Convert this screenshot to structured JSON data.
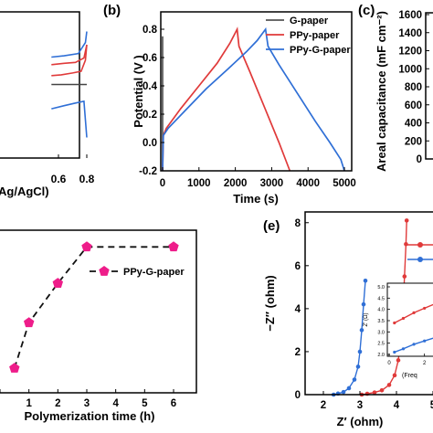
{
  "chart_data": [
    {
      "id": "a",
      "type": "line",
      "panel_label": "",
      "xlabel_fragment": "Ag/AgCl)",
      "x_ticks": [
        "0.6",
        "0.8"
      ],
      "xlim": [
        0.6,
        0.8
      ],
      "series": [
        {
          "color": "#444444",
          "x": [
            0.55,
            0.8
          ],
          "y": [
            0,
            0
          ]
        },
        {
          "color": "#e03a3a",
          "x": [
            0.55,
            0.62,
            0.7,
            0.76,
            0.79,
            0.8
          ],
          "y": [
            0.2,
            0.22,
            0.26,
            0.3,
            0.55,
            0.9
          ]
        },
        {
          "color": "#e03a3a",
          "x": [
            0.8,
            0.78,
            0.72,
            0.64,
            0.55
          ],
          "y": [
            0.9,
            0.6,
            0.5,
            0.48,
            0.45
          ]
        },
        {
          "color": "#2f6fd6",
          "x": [
            0.55,
            0.64,
            0.72,
            0.78,
            0.8
          ],
          "y": [
            -0.55,
            -0.48,
            -0.42,
            -0.38,
            -1.2
          ]
        },
        {
          "color": "#2f6fd6",
          "x": [
            0.8,
            0.79,
            0.74,
            0.64,
            0.55
          ],
          "y": [
            1.2,
            0.95,
            0.7,
            0.65,
            0.62
          ]
        }
      ]
    },
    {
      "id": "b",
      "type": "line",
      "panel_label": "(b)",
      "xlabel": "Time (s)",
      "ylabel": "Potential (V )",
      "xlim": [
        0,
        5200
      ],
      "ylim": [
        -0.2,
        0.8
      ],
      "x_ticks": [
        0,
        1000,
        2000,
        3000,
        4000,
        5000
      ],
      "y_ticks": [
        "-0.2",
        "0.0",
        "0.2",
        "0.4",
        "0.6",
        "0.8"
      ],
      "legend": "top-right",
      "series": [
        {
          "name": "G-paper",
          "color": "#555555",
          "x": [
            0,
            0,
            0,
            0,
            0,
            0
          ],
          "y": [
            -0.2,
            0.1,
            0.75,
            0.75,
            0.22,
            0.22
          ]
        },
        {
          "name": "PPy-paper",
          "color": "#e03a3a",
          "x": [
            0,
            20,
            100,
            500,
            1000,
            1500,
            1850,
            2050,
            2100,
            2400,
            2800,
            3200,
            3500
          ],
          "y": [
            -0.2,
            0.05,
            0.1,
            0.24,
            0.4,
            0.56,
            0.7,
            0.8,
            0.68,
            0.5,
            0.25,
            0.0,
            -0.2
          ]
        },
        {
          "name": "PPy-G-paper",
          "color": "#2f6fd6",
          "x": [
            0,
            20,
            150,
            600,
            1200,
            1800,
            2300,
            2600,
            2830,
            2900,
            3200,
            3700,
            4200,
            4600,
            4900,
            5000
          ],
          "y": [
            -0.2,
            0.05,
            0.1,
            0.22,
            0.38,
            0.52,
            0.64,
            0.72,
            0.8,
            0.68,
            0.55,
            0.35,
            0.15,
            0.0,
            -0.12,
            -0.2
          ]
        }
      ]
    },
    {
      "id": "c",
      "type": "bar",
      "panel_label": "(c)",
      "ylabel": "Areal capacitance (mF cm⁻²)",
      "ylim": [
        0,
        1600
      ],
      "y_ticks": [
        0,
        200,
        400,
        600,
        800,
        1000,
        1200,
        1400,
        1600
      ],
      "categories": [],
      "values": []
    },
    {
      "id": "d",
      "type": "line",
      "panel_label": "",
      "xlabel": "Polymerization time (h)",
      "x_ticks": [
        0,
        1,
        2,
        3,
        4,
        5,
        6
      ],
      "xlim": [
        0,
        6.5
      ],
      "y_range_relative": [
        0,
        1
      ],
      "legend": "right",
      "series": [
        {
          "name": "PPy-G-paper",
          "color": "#ee1d8a",
          "style": "dashed",
          "x": [
            0.5,
            1,
            2,
            3,
            6
          ],
          "y": [
            0.12,
            0.42,
            0.68,
            0.92,
            0.92
          ]
        }
      ]
    },
    {
      "id": "e",
      "type": "line",
      "panel_label": "(e)",
      "xlabel": "Z′ (ohm)",
      "ylabel": "−Z″ (ohm)",
      "xlim": [
        1.5,
        5.5
      ],
      "ylim": [
        0,
        8.5
      ],
      "x_ticks": [
        2,
        3,
        4,
        5
      ],
      "y_ticks": [
        0,
        2,
        4,
        6,
        8
      ],
      "series": [
        {
          "color": "#2f6fd6",
          "marker": "circle",
          "x": [
            2.28,
            2.4,
            2.55,
            2.7,
            2.85,
            2.95,
            3.0,
            3.05,
            3.1,
            3.15
          ],
          "y": [
            0.0,
            0.05,
            0.12,
            0.3,
            0.7,
            1.3,
            2.0,
            3.0,
            4.2,
            5.3
          ]
        },
        {
          "color": "#e03a3a",
          "marker": "circle",
          "x": [
            3.05,
            3.2,
            3.4,
            3.6,
            3.8,
            3.95,
            4.05,
            4.12,
            4.18,
            4.22,
            4.26,
            4.28
          ],
          "y": [
            0.0,
            0.04,
            0.1,
            0.2,
            0.45,
            0.9,
            1.6,
            2.6,
            4.0,
            5.5,
            7.0,
            8.1
          ]
        }
      ],
      "inset": {
        "ylabel": "Z' (Ω)",
        "xlabel_fragment": "(Freq",
        "y_ticks": [
          "2.0",
          "2.5",
          "3.0",
          "3.5",
          "4.0",
          "4.5",
          "5.0"
        ],
        "x_ticks": [
          "0",
          "2"
        ],
        "ylim": [
          2.0,
          5.0
        ],
        "xlim": [
          0,
          3
        ],
        "series": [
          {
            "color": "#e03a3a",
            "x": [
              0.3,
              0.8,
              1.4,
              2.0,
              2.6
            ],
            "y": [
              3.4,
              3.6,
              3.85,
              4.05,
              4.25
            ]
          },
          {
            "color": "#2f6fd6",
            "x": [
              0.3,
              0.8,
              1.4,
              2.0,
              2.6
            ],
            "y": [
              2.1,
              2.25,
              2.45,
              2.6,
              2.75
            ]
          }
        ]
      }
    }
  ]
}
